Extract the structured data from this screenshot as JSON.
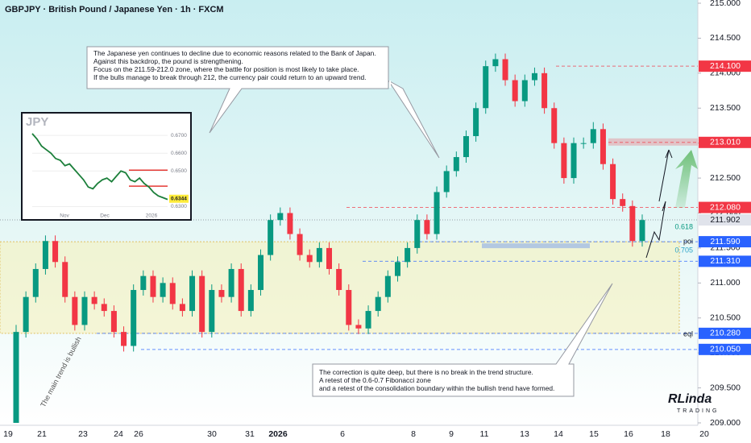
{
  "chart_data": [
    {
      "type": "candlestick",
      "title": "GBPJPY · British Pound / Japanese Yen · 1h · FXCM",
      "x_labels": [
        "19",
        "21",
        "23",
        "24",
        "26",
        "30",
        "31",
        "2026",
        "6",
        "8",
        "9",
        "11",
        "13",
        "14",
        "15",
        "16",
        "18",
        "20"
      ],
      "open": [
        209.0,
        210.3,
        210.8,
        211.2,
        211.6,
        211.3,
        210.8,
        210.4,
        210.8,
        210.7,
        210.6,
        210.3,
        210.1,
        210.9,
        211.1,
        210.8,
        211.0,
        210.7,
        210.6,
        211.1,
        210.3,
        210.9,
        210.8,
        211.2,
        210.6,
        210.9,
        211.4,
        211.9,
        212.0,
        211.7,
        211.4,
        211.3,
        211.5,
        211.2,
        210.9,
        210.4,
        210.35,
        210.6,
        210.8,
        211.1,
        211.3,
        211.5,
        211.9,
        211.7,
        212.3,
        212.6,
        212.8,
        213.1,
        213.5,
        214.1,
        214.2,
        213.9,
        213.6,
        213.9,
        214.0,
        213.5,
        213.0,
        212.5,
        213.0,
        213.0,
        213.2,
        212.7,
        212.2,
        212.1,
        211.6
      ],
      "high": [
        210.4,
        210.88,
        211.28,
        211.68,
        211.68,
        211.38,
        210.88,
        210.88,
        210.88,
        210.78,
        210.68,
        210.38,
        210.98,
        211.18,
        211.18,
        211.08,
        211.08,
        210.78,
        211.18,
        211.18,
        210.98,
        210.98,
        211.28,
        211.28,
        210.98,
        211.48,
        211.98,
        212.08,
        212.08,
        211.78,
        211.48,
        211.58,
        211.58,
        211.28,
        210.98,
        210.48,
        210.68,
        210.88,
        211.18,
        211.38,
        211.58,
        211.98,
        211.98,
        212.38,
        212.68,
        212.88,
        213.18,
        213.58,
        214.18,
        214.28,
        214.28,
        213.98,
        213.98,
        214.08,
        214.08,
        213.58,
        213.08,
        213.08,
        213.08,
        213.3,
        213.28,
        212.78,
        212.28,
        212.18,
        211.98
      ],
      "low": [
        209.0,
        210.22,
        210.72,
        211.12,
        211.22,
        210.72,
        210.32,
        210.32,
        210.62,
        210.52,
        210.22,
        210.02,
        210.02,
        210.82,
        210.72,
        210.72,
        210.62,
        210.52,
        210.52,
        210.22,
        210.22,
        210.72,
        210.72,
        210.52,
        210.52,
        210.82,
        211.32,
        211.82,
        211.62,
        211.32,
        211.22,
        211.22,
        211.12,
        210.82,
        210.32,
        210.27,
        210.27,
        210.52,
        210.72,
        211.02,
        211.22,
        211.42,
        211.62,
        211.62,
        212.22,
        212.52,
        212.72,
        213.02,
        213.42,
        214.02,
        213.82,
        213.52,
        213.52,
        213.82,
        213.42,
        212.92,
        212.42,
        212.42,
        212.92,
        212.92,
        212.62,
        212.12,
        212.02,
        211.52,
        211.52
      ],
      "close": [
        210.3,
        210.8,
        211.2,
        211.6,
        211.3,
        210.8,
        210.4,
        210.8,
        210.7,
        210.6,
        210.3,
        210.1,
        210.9,
        211.1,
        210.8,
        211.0,
        210.7,
        210.6,
        211.1,
        210.3,
        210.9,
        210.8,
        211.2,
        210.6,
        210.9,
        211.4,
        211.9,
        212.0,
        211.7,
        211.4,
        211.3,
        211.5,
        211.2,
        210.9,
        210.4,
        210.35,
        210.6,
        210.8,
        211.1,
        211.3,
        211.5,
        211.9,
        211.7,
        212.3,
        212.6,
        212.8,
        213.1,
        213.5,
        214.1,
        214.2,
        213.9,
        213.6,
        213.9,
        214.0,
        213.5,
        213.0,
        212.5,
        213.0,
        213.0,
        213.2,
        212.7,
        212.2,
        212.1,
        211.6,
        211.9
      ],
      "up_color": "#089981",
      "down_color": "#f23645",
      "ylim": [
        209.0,
        215.0
      ],
      "yticks": [
        {
          "value": 209.0,
          "label": "209.000"
        },
        {
          "value": 209.5,
          "label": "209.500"
        },
        {
          "value": 210.0,
          "label": "210.000"
        },
        {
          "value": 210.5,
          "label": "210.500"
        },
        {
          "value": 211.0,
          "label": "211.000"
        },
        {
          "value": 211.5,
          "label": "211.500"
        },
        {
          "value": 212.0,
          "label": "212.000"
        },
        {
          "value": 212.5,
          "label": "212.500"
        },
        {
          "value": 213.0,
          "label": "213.000"
        },
        {
          "value": 213.5,
          "label": "213.500"
        },
        {
          "value": 214.0,
          "label": "214.000"
        },
        {
          "value": 214.5,
          "label": "214.500"
        },
        {
          "value": 215.0,
          "label": "215.000"
        }
      ],
      "levels": [
        {
          "value": 214.1,
          "label": "214.100",
          "color": "#f23645"
        },
        {
          "value": 213.01,
          "label": "213.010",
          "color": "#f23645"
        },
        {
          "value": 212.08,
          "label": "212.080",
          "color": "#f23645"
        },
        {
          "value": 211.902,
          "label": "211.902",
          "color": "#787b86"
        },
        {
          "value": 211.59,
          "label": "211.590",
          "color": "#2962ff"
        },
        {
          "value": 211.31,
          "label": "211.310",
          "color": "#2962ff"
        },
        {
          "value": 210.28,
          "label": "210.280",
          "color": "#2962ff"
        },
        {
          "value": 210.05,
          "label": "210.050",
          "color": "#2962ff"
        }
      ],
      "fib_labels": [
        "0.618",
        "0.705"
      ],
      "zone_labels": [
        "poi",
        "eql"
      ],
      "trend_note": "The main trend is bullish",
      "note_top": [
        "The Japanese yen continues to decline due to economic reasons related to the Bank of Japan.",
        "Against this backdrop, the pound is strengthening.",
        "Focus on the 211.59-212.0 zone, where the battle for position is most likely to take place.",
        "If the bulls manage to break through 212, the currency pair could return to an upward trend."
      ],
      "note_bottom": [
        "The correction is quite deep, but there is no break in the trend structure.",
        "A retest of the 0.6-0.7 Fibonacci zone",
        "and a retest of the consolidation boundary within the bullish trend have formed."
      ],
      "logo": "RLinda",
      "logo_sub": "TRADING"
    },
    {
      "type": "line",
      "title": "JPY",
      "values": [
        0.671,
        0.668,
        0.664,
        0.662,
        0.66,
        0.657,
        0.656,
        0.653,
        0.654,
        0.651,
        0.648,
        0.645,
        0.641,
        0.64,
        0.643,
        0.645,
        0.646,
        0.644,
        0.647,
        0.65,
        0.649,
        0.645,
        0.644,
        0.646,
        0.643,
        0.641,
        0.638,
        0.636,
        0.635,
        0.634
      ],
      "color": "#1b7f3a",
      "ylim": [
        0.6275,
        0.6782
      ],
      "yticks": [
        {
          "value": 0.67,
          "label": "0.6700"
        },
        {
          "value": 0.66,
          "label": "0.6600"
        },
        {
          "value": 0.65,
          "label": "0.6500"
        },
        {
          "value": 0.63,
          "label": "0.6300"
        }
      ],
      "last": {
        "value": 0.6344,
        "label": "0.6344"
      },
      "levels": [
        0.6505,
        0.6415
      ],
      "x_labels": [
        "Nov",
        "Dec",
        "2026"
      ]
    }
  ]
}
